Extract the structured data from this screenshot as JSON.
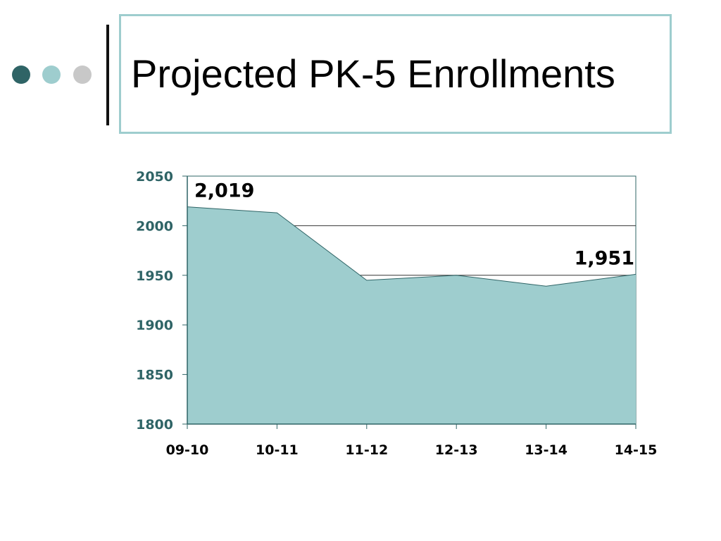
{
  "slide": {
    "title": "Projected PK-5 Enrollments",
    "decorative_dots": [
      "#2f6466",
      "#9ecdce",
      "#c8c8c8"
    ],
    "title_border_color": "#9ecdce"
  },
  "chart_data": {
    "type": "area",
    "title": "",
    "xlabel": "",
    "ylabel": "",
    "categories": [
      "09-10",
      "10-11",
      "11-12",
      "12-13",
      "13-14",
      "14-15"
    ],
    "series": [
      {
        "values": [
          2019,
          2013,
          1945,
          1950,
          1939,
          1951
        ]
      }
    ],
    "ylim": [
      1800,
      2050
    ],
    "yticks": [
      1800,
      1850,
      1900,
      1950,
      2000,
      2050
    ],
    "grid": true,
    "legend": "none",
    "data_labels": [
      {
        "index": 0,
        "text": "2,019"
      },
      {
        "index": 5,
        "text": "1,951"
      }
    ],
    "colors": {
      "fill": "#9ecdce",
      "line": "#2f6466",
      "axis": "#2f6466",
      "ytick_text": "#2f6466",
      "xtick_text": "#000000",
      "grid": "#333333"
    }
  }
}
